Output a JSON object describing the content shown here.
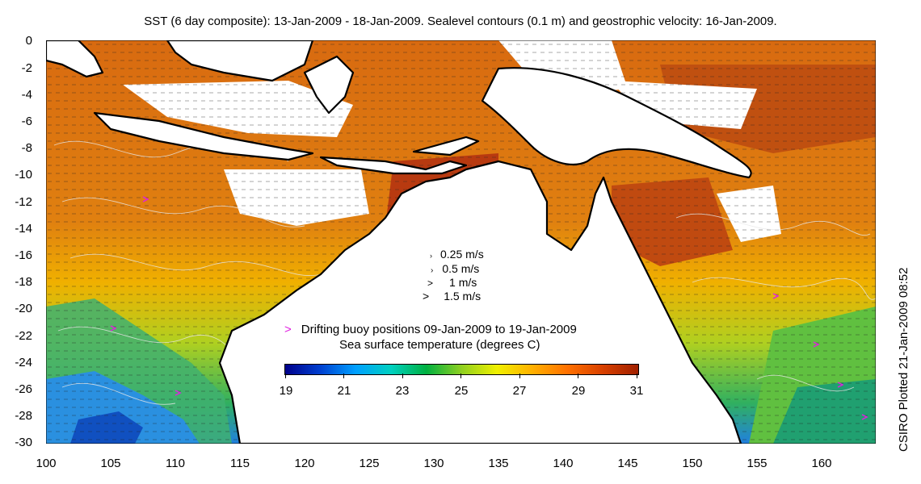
{
  "title": "SST (6 day composite): 13-Jan-2009 - 18-Jan-2009. Sealevel contours (0.1 m) and geostrophic velocity: 16-Jan-2009.",
  "credit": "CSIRO Plotted 21-Jan-2009 08:52",
  "axes": {
    "y_ticks": [
      "0",
      "-2",
      "-4",
      "-6",
      "-8",
      "-10",
      "-12",
      "-14",
      "-16",
      "-18",
      "-20",
      "-22",
      "-24",
      "-26",
      "-28",
      "-30"
    ],
    "x_ticks": [
      "100",
      "105",
      "110",
      "115",
      "120",
      "125",
      "130",
      "135",
      "140",
      "145",
      "150",
      "155",
      "160"
    ],
    "lat_range": [
      -30,
      0
    ],
    "lon_range": [
      100,
      164
    ]
  },
  "velocity_legend": [
    "0.25 m/s",
    "0.5 m/s",
    "1 m/s",
    "1.5 m/s"
  ],
  "buoy_legend": {
    "marker": ">",
    "label": "Drifting buoy positions 09-Jan-2009 to 19-Jan-2009"
  },
  "colorbar": {
    "title": "Sea surface temperature (degrees C)",
    "ticks": [
      "19",
      "21",
      "23",
      "25",
      "27",
      "29",
      "31"
    ],
    "colors": [
      "#00008b",
      "#0040d0",
      "#00a0ff",
      "#00d0c0",
      "#00b040",
      "#90d020",
      "#f0f000",
      "#ffb000",
      "#ff7000",
      "#d84000",
      "#a02000"
    ]
  },
  "colors": {
    "land": "#ffffff",
    "coast": "#000000",
    "buoy": "#e020e0",
    "cloud": "#ffffff"
  }
}
